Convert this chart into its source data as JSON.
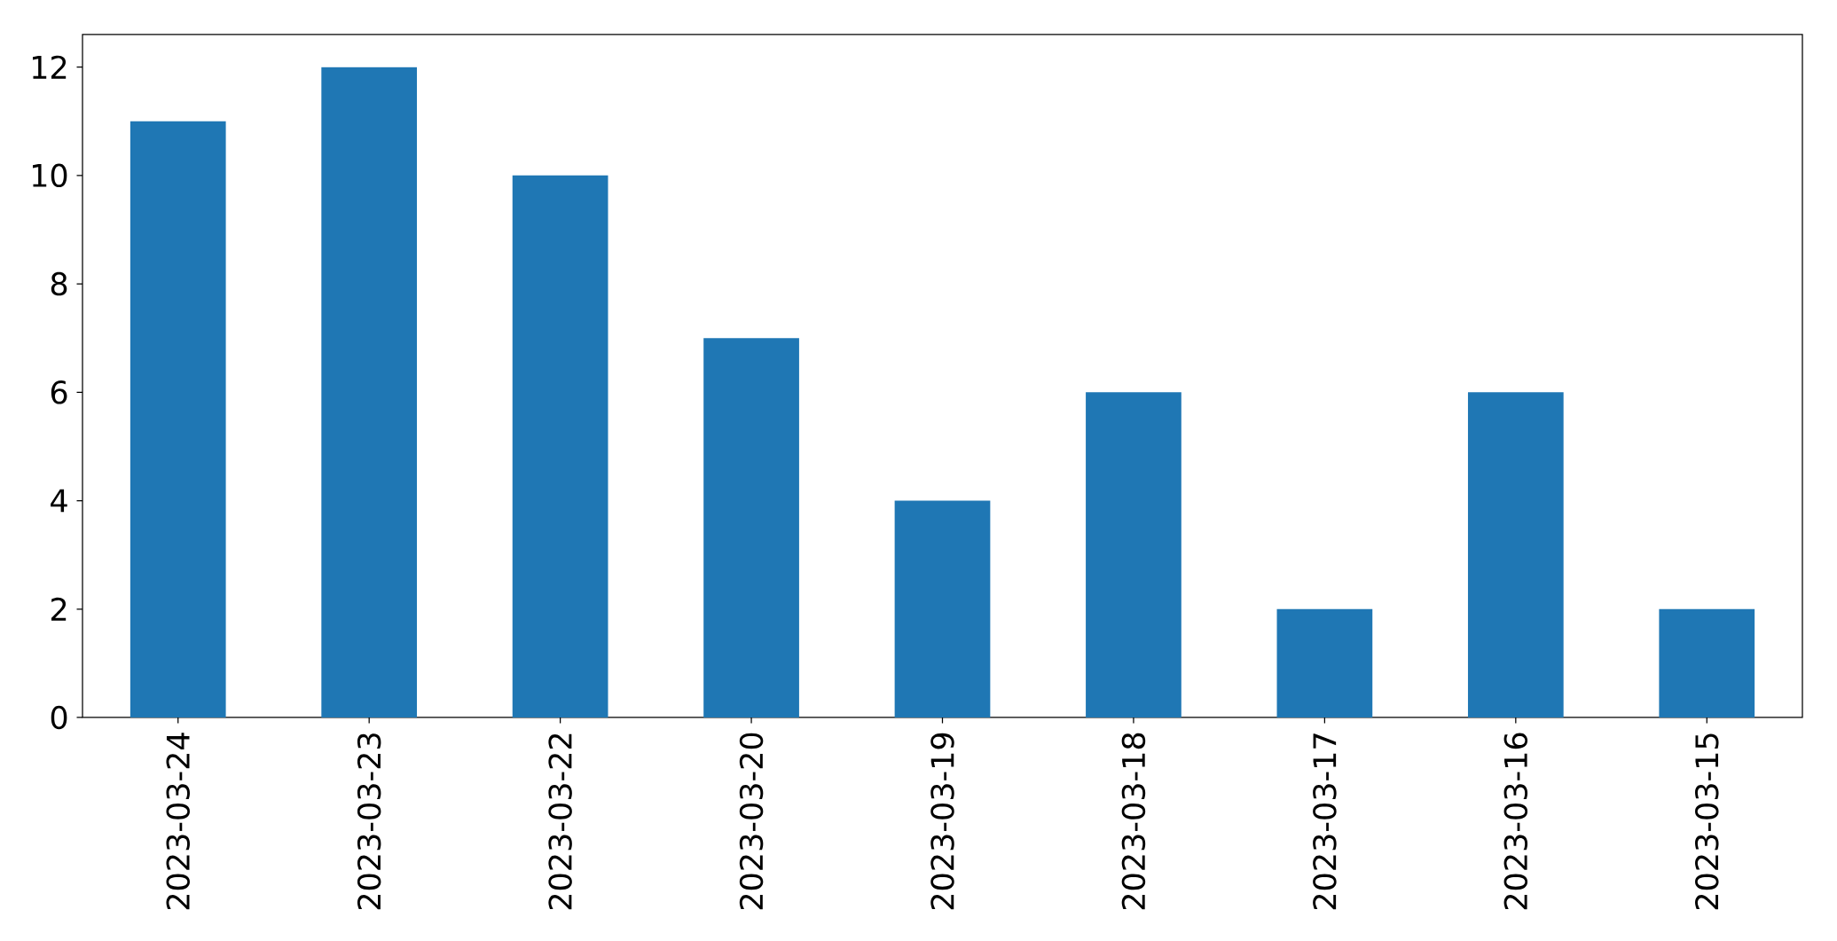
{
  "chart_data": {
    "type": "bar",
    "categories": [
      "2023-03-24",
      "2023-03-23",
      "2023-03-22",
      "2023-03-20",
      "2023-03-19",
      "2023-03-18",
      "2023-03-17",
      "2023-03-16",
      "2023-03-15"
    ],
    "values": [
      11,
      12,
      10,
      7,
      4,
      6,
      2,
      6,
      2
    ],
    "color": "#1f77b4",
    "ylim": [
      0,
      12.6
    ],
    "yticks": [
      0,
      2,
      4,
      6,
      8,
      10,
      12
    ]
  }
}
